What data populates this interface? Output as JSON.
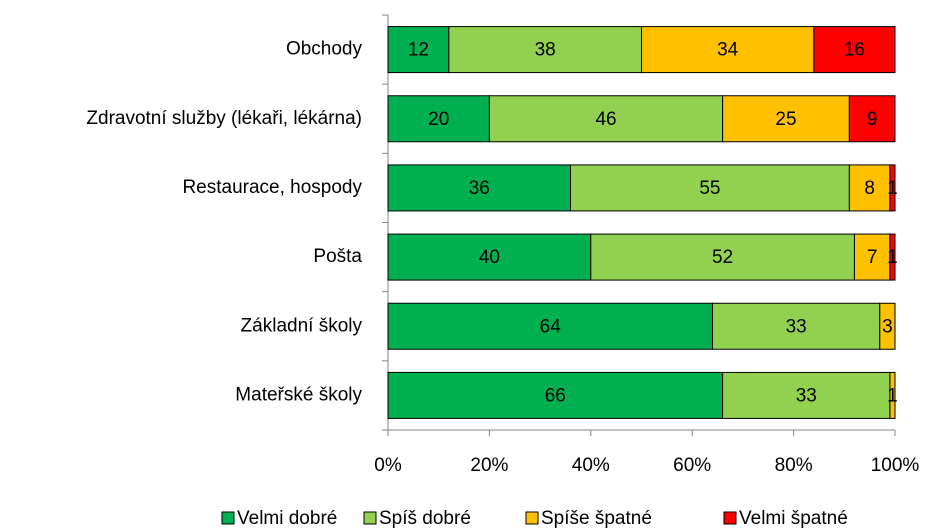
{
  "chart_data": {
    "type": "bar",
    "orientation": "horizontal",
    "stacked": true,
    "categories": [
      "Obchody",
      "Zdravotní služby (lékaři, lékárna)",
      "Restaurace, hospody",
      "Pošta",
      "Základní školy",
      "Mateřské školy"
    ],
    "series": [
      {
        "name": "Velmi dobré",
        "color": "#00b050",
        "values": [
          12,
          20,
          36,
          40,
          64,
          66
        ]
      },
      {
        "name": "Spíš dobré",
        "color": "#92d050",
        "values": [
          38,
          46,
          55,
          52,
          33,
          33
        ]
      },
      {
        "name": "Spíše špatné",
        "color": "#ffc000",
        "values": [
          34,
          25,
          8,
          7,
          3,
          1
        ]
      },
      {
        "name": "Velmi špatné",
        "color": "#ff0000",
        "values": [
          16,
          9,
          1,
          1,
          0,
          0
        ]
      }
    ],
    "xlim": [
      0,
      100
    ],
    "xticks": [
      {
        "value": 0,
        "label": "0%"
      },
      {
        "value": 20,
        "label": "20%"
      },
      {
        "value": 40,
        "label": "40%"
      },
      {
        "value": 60,
        "label": "60%"
      },
      {
        "value": 80,
        "label": "80%"
      },
      {
        "value": 100,
        "label": "100%"
      }
    ],
    "legend": "bottom"
  }
}
